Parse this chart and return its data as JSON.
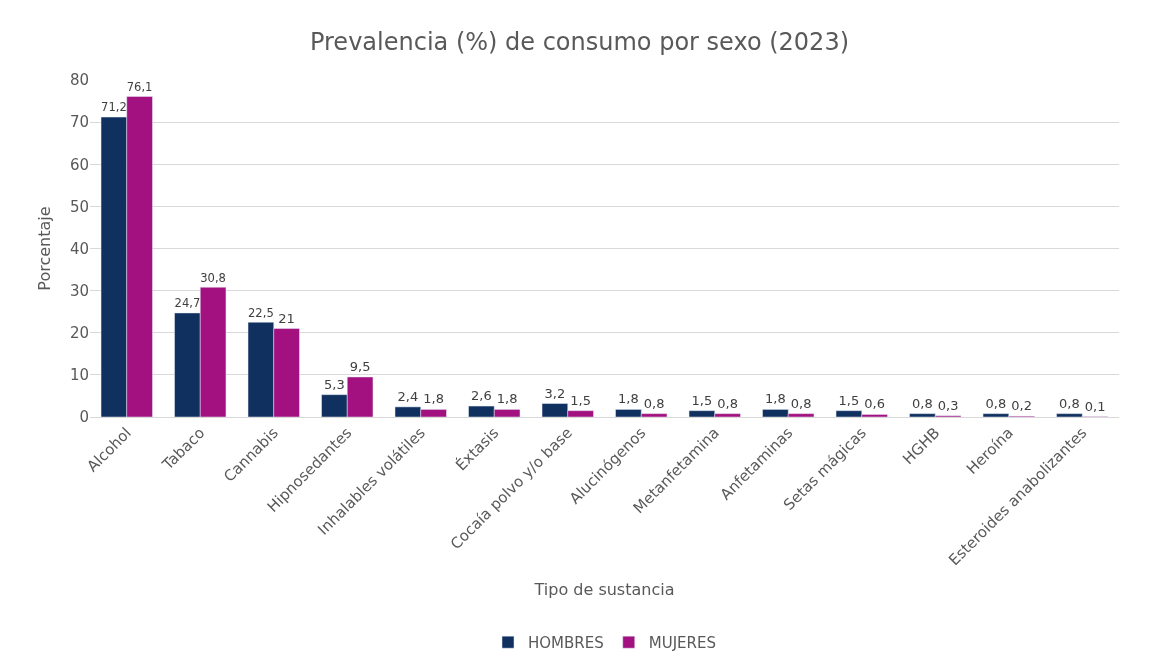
{
  "chart_data": {
    "type": "bar",
    "title": "Prevalencia (%) de consumo por sexo (2023)",
    "xlabel": "Tipo de sustancia",
    "ylabel": "Porcentaje",
    "categories": [
      "Alcohol",
      "Tabaco",
      "Cannabis",
      "Hipnosedantes",
      "Inhalables volátiles",
      "Éxtasis",
      "Cocaía polvo y/o base",
      "Alucinógenos",
      "Metanfetamina",
      "Anfetaminas",
      "Setas mágicas",
      "HGHB",
      "Heroína",
      "Esteroides anabolizantes"
    ],
    "series": [
      {
        "name": "HOMBRES",
        "color": "#10305f",
        "values": [
          71.2,
          24.7,
          22.5,
          5.3,
          2.4,
          2.6,
          3.2,
          1.8,
          1.5,
          1.8,
          1.5,
          0.8,
          0.8,
          0.8
        ],
        "value_labels": [
          "71,2",
          "24,7",
          "22,5",
          "5,3",
          "2,4",
          "2,6",
          "3,2",
          "1,8",
          "1,5",
          "1,8",
          "1,5",
          "0,8",
          "0,8",
          "0,8"
        ]
      },
      {
        "name": "MUJERES",
        "color": "#a3107f",
        "values": [
          76.1,
          30.8,
          21,
          9.5,
          1.8,
          1.8,
          1.5,
          0.8,
          0.8,
          0.8,
          0.6,
          0.3,
          0.2,
          0.1
        ],
        "value_labels": [
          "76,1",
          "30,8",
          "21",
          "9,5",
          "1,8",
          "1,8",
          "1,5",
          "0,8",
          "0,8",
          "0,8",
          "0,6",
          "0,3",
          "0,2",
          "0,1"
        ]
      }
    ],
    "ylim": [
      0,
      80
    ],
    "yticks": [
      0,
      10,
      20,
      30,
      40,
      50,
      60,
      70,
      80
    ],
    "grid": "y",
    "legend": "bottom"
  }
}
